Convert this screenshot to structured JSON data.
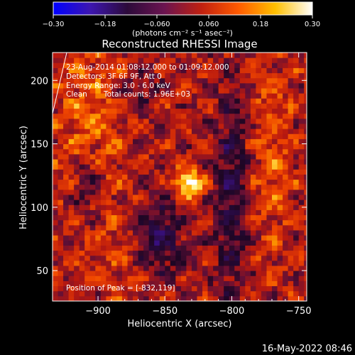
{
  "colorbar": {
    "ticks": [
      "-0.30",
      "-0.18",
      "-0.060",
      "0.060",
      "0.18",
      "0.30"
    ],
    "range": [
      -0.3,
      0.3
    ],
    "unit_label": "(photons cm⁻² s⁻¹ asec⁻²)",
    "stops": [
      "#0000ff",
      "#3d16b0",
      "#2c0a3a",
      "#6b1450",
      "#c02010",
      "#ff5a00",
      "#ffc000",
      "#ffffff"
    ]
  },
  "chart_data": {
    "type": "heatmap",
    "title": "Reconstructed RHESSI Image",
    "xlabel": "Heliocentric X (arcsec)",
    "ylabel": "Heliocentric Y (arcsec)",
    "xlim": [
      -934,
      -744
    ],
    "ylim": [
      26,
      222
    ],
    "x_ticks": [
      -900,
      -850,
      -800,
      -750
    ],
    "y_ticks": [
      50,
      100,
      150,
      200
    ],
    "x_tick_labels": [
      "−900",
      "−850",
      "−800",
      "−750"
    ],
    "y_tick_labels": [
      "50",
      "100",
      "150",
      "200"
    ],
    "peak_position": [
      -832,
      119
    ],
    "annotations": [
      "23-Aug-2014 01:08:12.000 to 01:09:12.000",
      "Detectors: 3F 6F 9F, Att 0",
      "Energy Range: 3.0 - 6.0 keV",
      "Clean",
      "Total counts: 1.96E+03",
      "Position of Peak = [-832,119]"
    ]
  },
  "footer_date": "16-May-2022 08:46"
}
